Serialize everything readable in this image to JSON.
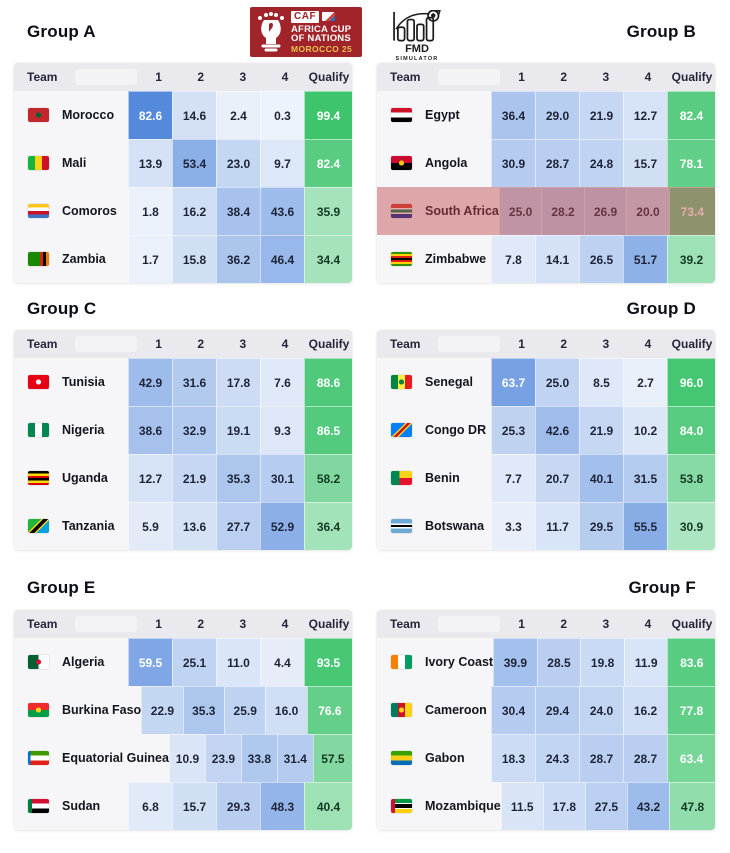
{
  "header": {
    "caf_logo": {
      "badge": "CAF",
      "line1": "AFRICA CUP",
      "line2": "OF NATIONS",
      "line3": "MOROCCO 25",
      "bg_color": "#a1242b",
      "gold_color": "#e8c14e"
    },
    "fmd_logo": {
      "line1": "FMD",
      "line2": "SIMULATOR"
    }
  },
  "table_headers": {
    "team": "Team",
    "cols": [
      "1",
      "2",
      "3",
      "4",
      "Qualify"
    ]
  },
  "colors": {
    "heat_blue_low": "#eef3fb",
    "heat_blue_high": "#5086db",
    "heat_green_low": "#ddf4e6",
    "heat_green_high": "#3ec46d",
    "highlight_overlay": "rgba(190,70,70,0.45)"
  },
  "groups": [
    {
      "id": "a",
      "name": "Group A",
      "rows": [
        {
          "team": "Morocco",
          "values": [
            "82.6",
            "14.6",
            "2.4",
            "0.3"
          ],
          "qualify": "99.4",
          "flag": {
            "dir": "h",
            "stripes": [
              [
                "#c1272d",
                100
              ]
            ],
            "dot": "#006233"
          }
        },
        {
          "team": "Mali",
          "values": [
            "13.9",
            "53.4",
            "23.0",
            "9.7"
          ],
          "qualify": "82.4",
          "flag": {
            "dir": "v",
            "stripes": [
              [
                "#14b53a",
                33
              ],
              [
                "#fcd116",
                34
              ],
              [
                "#ce1126",
                33
              ]
            ]
          }
        },
        {
          "team": "Comoros",
          "values": [
            "1.8",
            "16.2",
            "38.4",
            "43.6"
          ],
          "qualify": "35.9",
          "flag": {
            "dir": "h",
            "stripes": [
              [
                "#ffc61e",
                25
              ],
              [
                "#ffffff",
                25
              ],
              [
                "#ce1126",
                25
              ],
              [
                "#3a75c4",
                25
              ]
            ]
          }
        },
        {
          "team": "Zambia",
          "values": [
            "1.7",
            "15.8",
            "36.2",
            "46.4"
          ],
          "qualify": "34.4",
          "flag": {
            "dir": "v",
            "stripes": [
              [
                "#198a00",
                58
              ],
              [
                "#de2010",
                14
              ],
              [
                "#000000",
                14
              ],
              [
                "#ef7d00",
                14
              ]
            ]
          }
        }
      ]
    },
    {
      "id": "b",
      "name": "Group B",
      "rows": [
        {
          "team": "Egypt",
          "values": [
            "36.4",
            "29.0",
            "21.9",
            "12.7"
          ],
          "qualify": "82.4",
          "flag": {
            "dir": "h",
            "stripes": [
              [
                "#ce1126",
                33
              ],
              [
                "#ffffff",
                34
              ],
              [
                "#000000",
                33
              ]
            ]
          }
        },
        {
          "team": "Angola",
          "values": [
            "30.9",
            "28.7",
            "24.8",
            "15.7"
          ],
          "qualify": "78.1",
          "flag": {
            "dir": "h",
            "stripes": [
              [
                "#cc092f",
                50
              ],
              [
                "#000000",
                50
              ]
            ],
            "dot": "#ffcb00"
          }
        },
        {
          "team": "South Africa",
          "values": [
            "25.0",
            "28.2",
            "26.9",
            "20.0"
          ],
          "qualify": "73.4",
          "highlight": true,
          "flag": {
            "dir": "h",
            "stripes": [
              [
                "#de3831",
                30
              ],
              [
                "#ffffff",
                8
              ],
              [
                "#007a4d",
                24
              ],
              [
                "#ffffff",
                8
              ],
              [
                "#002395",
                30
              ]
            ]
          }
        },
        {
          "team": "Zimbabwe",
          "values": [
            "7.8",
            "14.1",
            "26.5",
            "51.7"
          ],
          "qualify": "39.2",
          "flag": {
            "dir": "h",
            "stripes": [
              [
                "#319208",
                14
              ],
              [
                "#ffd200",
                14
              ],
              [
                "#de2010",
                14
              ],
              [
                "#000000",
                16
              ],
              [
                "#de2010",
                14
              ],
              [
                "#ffd200",
                14
              ],
              [
                "#319208",
                14
              ]
            ]
          }
        }
      ]
    },
    {
      "id": "c",
      "name": "Group C",
      "rows": [
        {
          "team": "Tunisia",
          "values": [
            "42.9",
            "31.6",
            "17.8",
            "7.6"
          ],
          "qualify": "88.6",
          "flag": {
            "dir": "h",
            "stripes": [
              [
                "#e70013",
                100
              ]
            ],
            "dot": "#ffffff"
          }
        },
        {
          "team": "Nigeria",
          "values": [
            "38.6",
            "32.9",
            "19.1",
            "9.3"
          ],
          "qualify": "86.5",
          "flag": {
            "dir": "v",
            "stripes": [
              [
                "#008751",
                33
              ],
              [
                "#ffffff",
                34
              ],
              [
                "#008751",
                33
              ]
            ]
          }
        },
        {
          "team": "Uganda",
          "values": [
            "12.7",
            "21.9",
            "35.3",
            "30.1"
          ],
          "qualify": "58.2",
          "flag": {
            "dir": "h",
            "stripes": [
              [
                "#000000",
                17
              ],
              [
                "#fcdc04",
                17
              ],
              [
                "#d90000",
                16
              ],
              [
                "#000000",
                17
              ],
              [
                "#fcdc04",
                17
              ],
              [
                "#d90000",
                16
              ]
            ]
          }
        },
        {
          "team": "Tanzania",
          "values": [
            "5.9",
            "13.6",
            "27.7",
            "52.9"
          ],
          "qualify": "36.4",
          "flag": {
            "dir": "d",
            "stripes": [
              [
                "#1eb53a",
                38
              ],
              [
                "#fcd116",
                6
              ],
              [
                "#000000",
                14
              ],
              [
                "#fcd116",
                6
              ],
              [
                "#00a3dd",
                36
              ]
            ]
          }
        }
      ]
    },
    {
      "id": "d",
      "name": "Group D",
      "rows": [
        {
          "team": "Senegal",
          "values": [
            "63.7",
            "25.0",
            "8.5",
            "2.7"
          ],
          "qualify": "96.0",
          "flag": {
            "dir": "v",
            "stripes": [
              [
                "#00853f",
                33
              ],
              [
                "#fdef42",
                34
              ],
              [
                "#e31b23",
                33
              ]
            ],
            "dot": "#00853f"
          }
        },
        {
          "team": "Congo DR",
          "values": [
            "25.3",
            "42.6",
            "21.9",
            "10.2"
          ],
          "qualify": "84.0",
          "flag": {
            "dir": "d",
            "stripes": [
              [
                "#007fff",
                40
              ],
              [
                "#f7d618",
                6
              ],
              [
                "#ce1021",
                10
              ],
              [
                "#f7d618",
                6
              ],
              [
                "#007fff",
                38
              ]
            ]
          }
        },
        {
          "team": "Benin",
          "values": [
            "7.7",
            "20.7",
            "40.1",
            "31.5"
          ],
          "qualify": "53.8",
          "flag": {
            "dir": "h",
            "stripes": [
              [
                "#fcd116",
                50
              ],
              [
                "#e8112d",
                50
              ]
            ],
            "bar": [
              "#008751",
              40
            ]
          }
        },
        {
          "team": "Botswana",
          "values": [
            "3.3",
            "11.7",
            "29.5",
            "55.5"
          ],
          "qualify": "30.9",
          "flag": {
            "dir": "h",
            "stripes": [
              [
                "#6da9d2",
                32
              ],
              [
                "#ffffff",
                10
              ],
              [
                "#000000",
                16
              ],
              [
                "#ffffff",
                10
              ],
              [
                "#6da9d2",
                32
              ]
            ]
          }
        }
      ]
    },
    {
      "id": "e",
      "name": "Group E",
      "rows": [
        {
          "team": "Algeria",
          "values": [
            "59.5",
            "25.1",
            "11.0",
            "4.4"
          ],
          "qualify": "93.5",
          "flag": {
            "dir": "v",
            "stripes": [
              [
                "#006233",
                50
              ],
              [
                "#ffffff",
                50
              ]
            ],
            "dot": "#d21034"
          }
        },
        {
          "team": "Burkina Faso",
          "values": [
            "22.9",
            "35.3",
            "25.9",
            "16.0"
          ],
          "qualify": "76.6",
          "flag": {
            "dir": "h",
            "stripes": [
              [
                "#ef2b2d",
                50
              ],
              [
                "#009e49",
                50
              ]
            ],
            "dot": "#fcd116"
          }
        },
        {
          "team": "Equatorial Guinea",
          "values": [
            "10.9",
            "23.9",
            "33.8",
            "31.4"
          ],
          "qualify": "57.5",
          "flag": {
            "dir": "h",
            "stripes": [
              [
                "#3e9a00",
                33
              ],
              [
                "#ffffff",
                34
              ],
              [
                "#e32118",
                33
              ]
            ],
            "bar": [
              "#0073ce",
              12
            ]
          }
        },
        {
          "team": "Sudan",
          "values": [
            "6.8",
            "15.7",
            "29.3",
            "48.3"
          ],
          "qualify": "40.4",
          "flag": {
            "dir": "h",
            "stripes": [
              [
                "#d21034",
                33
              ],
              [
                "#ffffff",
                34
              ],
              [
                "#000000",
                33
              ]
            ],
            "bar": [
              "#007a3d",
              20
            ]
          }
        }
      ]
    },
    {
      "id": "f",
      "name": "Group F",
      "rows": [
        {
          "team": "Ivory Coast",
          "values": [
            "39.9",
            "28.5",
            "19.8",
            "11.9"
          ],
          "qualify": "83.6",
          "flag": {
            "dir": "v",
            "stripes": [
              [
                "#f77f00",
                33
              ],
              [
                "#ffffff",
                34
              ],
              [
                "#009e60",
                33
              ]
            ]
          }
        },
        {
          "team": "Cameroon",
          "values": [
            "30.4",
            "29.4",
            "24.0",
            "16.2"
          ],
          "qualify": "77.8",
          "flag": {
            "dir": "v",
            "stripes": [
              [
                "#007a5e",
                33
              ],
              [
                "#ce1126",
                34
              ],
              [
                "#fcd116",
                33
              ]
            ],
            "dot": "#fcd116"
          }
        },
        {
          "team": "Gabon",
          "values": [
            "18.3",
            "24.3",
            "28.7",
            "28.7"
          ],
          "qualify": "63.4",
          "flag": {
            "dir": "h",
            "stripes": [
              [
                "#36a100",
                33
              ],
              [
                "#fcd116",
                34
              ],
              [
                "#006dbc",
                33
              ]
            ]
          }
        },
        {
          "team": "Mozambique",
          "values": [
            "11.5",
            "17.8",
            "27.5",
            "43.2"
          ],
          "qualify": "47.8",
          "flag": {
            "dir": "h",
            "stripes": [
              [
                "#009a44",
                30
              ],
              [
                "#ffffff",
                6
              ],
              [
                "#000000",
                28
              ],
              [
                "#ffffff",
                6
              ],
              [
                "#ffd100",
                30
              ]
            ],
            "bar": [
              "#d21034",
              18
            ]
          }
        }
      ]
    }
  ]
}
